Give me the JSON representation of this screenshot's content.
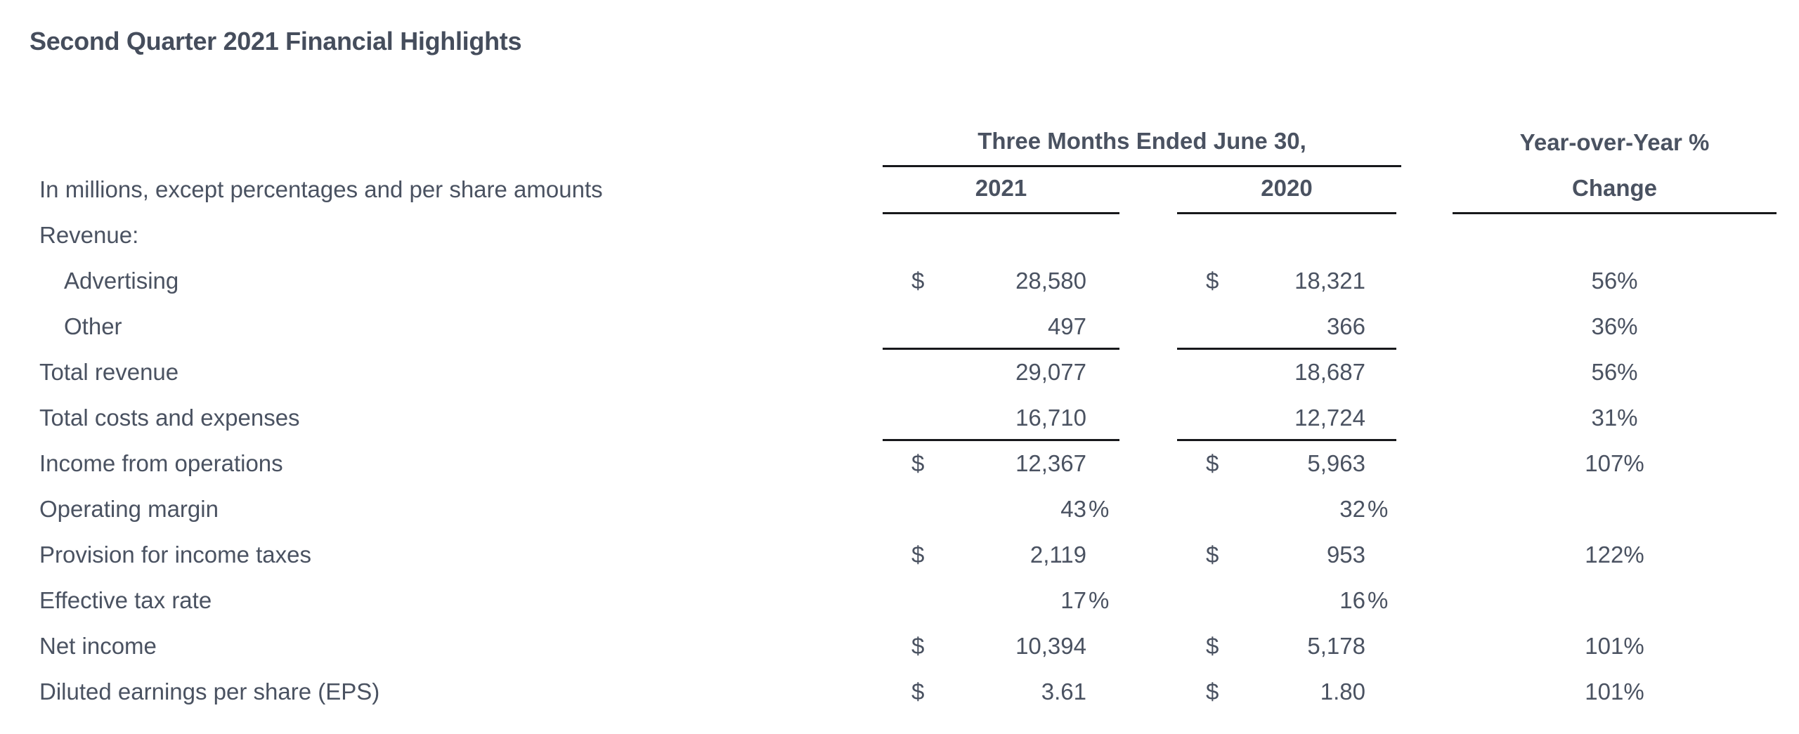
{
  "page": {
    "title": "Second Quarter 2021 Financial Highlights"
  },
  "colors": {
    "text": "#4a5261",
    "title": "#454d5c",
    "rule": "#17181b",
    "background": "#ffffff"
  },
  "table": {
    "note": "In millions, except percentages and per share amounts",
    "col_group_header": "Three Months Ended June 30,",
    "col_headers": {
      "y2021": "2021",
      "y2020": "2020",
      "yoy_line1": "Year-over-Year %",
      "yoy_line2": "Change"
    },
    "rows": [
      {
        "label": "Revenue:",
        "indent": false,
        "cur1": "",
        "val1": "",
        "sfx1": "",
        "cur2": "",
        "val2": "",
        "sfx2": "",
        "yoy": "",
        "rule_below": false
      },
      {
        "label": "Advertising",
        "indent": true,
        "cur1": "$",
        "val1": "28,580",
        "sfx1": "",
        "cur2": "$",
        "val2": "18,321",
        "sfx2": "",
        "yoy": "56%",
        "rule_below": false
      },
      {
        "label": "Other",
        "indent": true,
        "cur1": "",
        "val1": "497",
        "sfx1": "",
        "cur2": "",
        "val2": "366",
        "sfx2": "",
        "yoy": "36%",
        "rule_below": true
      },
      {
        "label": "Total revenue",
        "indent": false,
        "cur1": "",
        "val1": "29,077",
        "sfx1": "",
        "cur2": "",
        "val2": "18,687",
        "sfx2": "",
        "yoy": "56%",
        "rule_below": false
      },
      {
        "label": "Total costs and expenses",
        "indent": false,
        "cur1": "",
        "val1": "16,710",
        "sfx1": "",
        "cur2": "",
        "val2": "12,724",
        "sfx2": "",
        "yoy": "31%",
        "rule_below": true
      },
      {
        "label": "Income from operations",
        "indent": false,
        "cur1": "$",
        "val1": "12,367",
        "sfx1": "",
        "cur2": "$",
        "val2": "5,963",
        "sfx2": "",
        "yoy": "107%",
        "rule_below": false
      },
      {
        "label": "Operating margin",
        "indent": false,
        "cur1": "",
        "val1": "43",
        "sfx1": "%",
        "cur2": "",
        "val2": "32",
        "sfx2": "%",
        "yoy": "",
        "rule_below": false
      },
      {
        "label": "Provision for income taxes",
        "indent": false,
        "cur1": "$",
        "val1": "2,119",
        "sfx1": "",
        "cur2": "$",
        "val2": "953",
        "sfx2": "",
        "yoy": "122%",
        "rule_below": false
      },
      {
        "label": "Effective tax rate",
        "indent": false,
        "cur1": "",
        "val1": "17",
        "sfx1": "%",
        "cur2": "",
        "val2": "16",
        "sfx2": "%",
        "yoy": "",
        "rule_below": false
      },
      {
        "label": "Net income",
        "indent": false,
        "cur1": "$",
        "val1": "10,394",
        "sfx1": "",
        "cur2": "$",
        "val2": "5,178",
        "sfx2": "",
        "yoy": "101%",
        "rule_below": false
      },
      {
        "label": "Diluted earnings per share (EPS)",
        "indent": false,
        "cur1": "$",
        "val1": "3.61",
        "sfx1": "",
        "cur2": "$",
        "val2": "1.80",
        "sfx2": "",
        "yoy": "101%",
        "rule_below": false
      }
    ]
  }
}
